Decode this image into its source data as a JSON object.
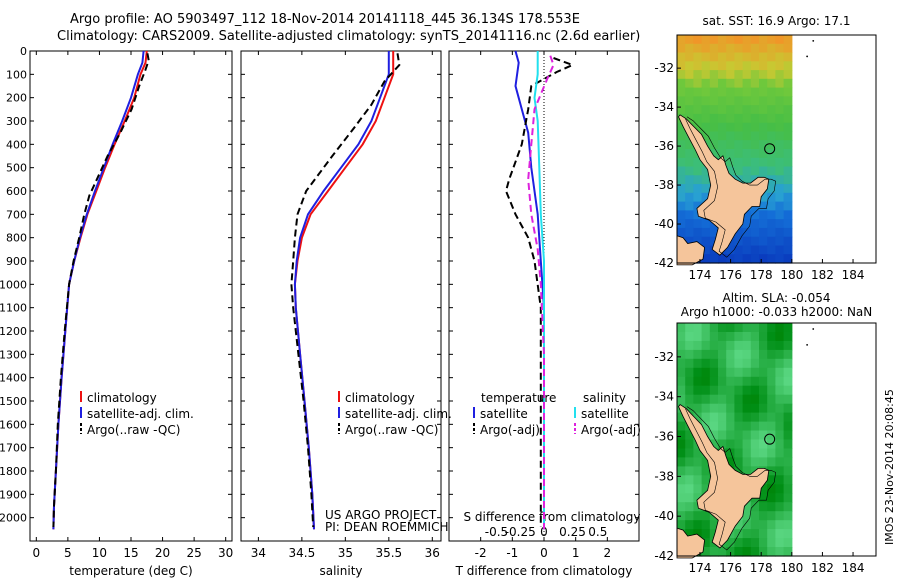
{
  "header": {
    "line1": "Argo profile: AO 5903497_112 18-Nov-2014 20141118_445 36.134S 178.553E",
    "line2": "Climatology: CARS2009. Satellite-adjusted climatology: synTS_20141116.nc (2.6d earlier)"
  },
  "stamp": "IMOS 23-Nov-2014 20:08:45",
  "colors": {
    "climatology": "#ee1111",
    "satellite": "#1f1fe0",
    "argo": "#000000",
    "sal_satellite": "#22e0ee",
    "sal_argo": "#dd22dd",
    "land": "#f5c59b",
    "ocean_cold": "#0a3fbf",
    "ocean_warm": "#f0c020",
    "sla_field": "#36b84a"
  },
  "legends": {
    "temperature": [
      "climatology",
      "satellite-adj. clim.",
      "Argo(..raw -QC)"
    ],
    "salinity": [
      "climatology",
      "satellite-adj. clim.",
      "Argo(..raw -QC)"
    ],
    "difference_headers": [
      "temperature",
      "salinity"
    ],
    "difference_rows": [
      "satellite",
      "Argo(-adj)",
      "satellite",
      "Argo(-adj)"
    ]
  },
  "credits": [
    "US ARGO PROJECT",
    "PI: DEAN ROEMMICH"
  ],
  "map_titles": {
    "sst": "sat. SST: 16.9 Argo: 17.1",
    "sla_line1": "Altim. SLA: -0.054",
    "sla_line2": "Argo h1000: -0.033 h2000: NaN"
  },
  "chart_data": [
    {
      "type": "line",
      "name": "temperature profile",
      "xlabel": "temperature (deg C)",
      "ylabel": "",
      "xlim": [
        -1,
        31
      ],
      "ylim": [
        2100,
        0
      ],
      "xticks": [
        0,
        5,
        10,
        15,
        20,
        25,
        30
      ],
      "yticks": [
        0,
        100,
        200,
        300,
        400,
        500,
        600,
        700,
        800,
        900,
        1000,
        1100,
        1200,
        1300,
        1400,
        1500,
        1600,
        1700,
        1800,
        1900,
        2000
      ],
      "series": [
        {
          "name": "climatology",
          "color_key": "climatology",
          "points": [
            [
              17.5,
              0
            ],
            [
              17.3,
              50
            ],
            [
              16.5,
              100
            ],
            [
              15.5,
              200
            ],
            [
              14.0,
              300
            ],
            [
              12.4,
              400
            ],
            [
              10.9,
              500
            ],
            [
              9.5,
              600
            ],
            [
              8.1,
              700
            ],
            [
              7.0,
              800
            ],
            [
              6.0,
              900
            ],
            [
              5.2,
              1000
            ],
            [
              4.6,
              1200
            ],
            [
              4.0,
              1400
            ],
            [
              3.5,
              1600
            ],
            [
              3.1,
              1800
            ],
            [
              2.8,
              1950
            ],
            [
              2.7,
              2050
            ]
          ]
        },
        {
          "name": "satellite-adj. clim.",
          "color_key": "satellite",
          "points": [
            [
              17.0,
              0
            ],
            [
              16.8,
              50
            ],
            [
              16.1,
              100
            ],
            [
              15.0,
              200
            ],
            [
              13.6,
              300
            ],
            [
              12.1,
              400
            ],
            [
              10.7,
              500
            ],
            [
              9.3,
              600
            ],
            [
              8.0,
              700
            ],
            [
              6.9,
              800
            ],
            [
              6.0,
              900
            ],
            [
              5.2,
              1000
            ],
            [
              4.6,
              1200
            ],
            [
              4.0,
              1400
            ],
            [
              3.5,
              1600
            ],
            [
              3.1,
              1800
            ],
            [
              2.8,
              1950
            ],
            [
              2.7,
              2050
            ]
          ]
        },
        {
          "name": "Argo(..raw -QC)",
          "color_key": "argo",
          "dash": true,
          "points": [
            [
              17.6,
              10
            ],
            [
              17.8,
              40
            ],
            [
              17.3,
              80
            ],
            [
              16.3,
              150
            ],
            [
              15.1,
              250
            ],
            [
              13.3,
              350
            ],
            [
              11.3,
              450
            ],
            [
              9.6,
              550
            ],
            [
              8.4,
              620
            ],
            [
              7.6,
              700
            ],
            [
              6.8,
              800
            ],
            [
              5.9,
              900
            ],
            [
              5.2,
              1000
            ],
            [
              4.5,
              1200
            ],
            [
              3.9,
              1400
            ],
            [
              3.4,
              1600
            ],
            [
              3.1,
              1800
            ],
            [
              2.8,
              1950
            ],
            [
              2.7,
              2040
            ]
          ]
        }
      ]
    },
    {
      "type": "line",
      "name": "salinity profile",
      "xlabel": "salinity",
      "ylabel": "",
      "xlim": [
        33.8,
        36.1
      ],
      "ylim": [
        2100,
        0
      ],
      "xticks": [
        34,
        34.5,
        35,
        35.5,
        36
      ],
      "series": [
        {
          "name": "climatology",
          "color_key": "climatology",
          "points": [
            [
              35.55,
              0
            ],
            [
              35.55,
              100
            ],
            [
              35.45,
              200
            ],
            [
              35.35,
              300
            ],
            [
              35.2,
              400
            ],
            [
              35.0,
              500
            ],
            [
              34.8,
              600
            ],
            [
              34.6,
              700
            ],
            [
              34.5,
              800
            ],
            [
              34.45,
              900
            ],
            [
              34.42,
              1000
            ],
            [
              34.43,
              1100
            ],
            [
              34.48,
              1300
            ],
            [
              34.53,
              1500
            ],
            [
              34.58,
              1700
            ],
            [
              34.62,
              1900
            ],
            [
              34.64,
              2050
            ]
          ]
        },
        {
          "name": "satellite-adj. clim.",
          "color_key": "satellite",
          "points": [
            [
              35.5,
              0
            ],
            [
              35.5,
              100
            ],
            [
              35.4,
              200
            ],
            [
              35.3,
              300
            ],
            [
              35.15,
              400
            ],
            [
              34.95,
              500
            ],
            [
              34.75,
              600
            ],
            [
              34.57,
              700
            ],
            [
              34.48,
              800
            ],
            [
              34.44,
              900
            ],
            [
              34.42,
              1000
            ],
            [
              34.43,
              1100
            ],
            [
              34.48,
              1300
            ],
            [
              34.53,
              1500
            ],
            [
              34.58,
              1700
            ],
            [
              34.62,
              1900
            ],
            [
              34.64,
              2050
            ]
          ]
        },
        {
          "name": "Argo(..raw -QC)",
          "color_key": "argo",
          "dash": true,
          "points": [
            [
              35.6,
              10
            ],
            [
              35.62,
              60
            ],
            [
              35.45,
              130
            ],
            [
              35.3,
              230
            ],
            [
              35.1,
              330
            ],
            [
              34.85,
              450
            ],
            [
              34.55,
              600
            ],
            [
              34.45,
              700
            ],
            [
              34.42,
              800
            ],
            [
              34.4,
              900
            ],
            [
              34.38,
              1000
            ],
            [
              34.4,
              1100
            ],
            [
              34.46,
              1300
            ],
            [
              34.52,
              1500
            ],
            [
              34.57,
              1700
            ],
            [
              34.61,
              1900
            ],
            [
              34.63,
              2040
            ]
          ]
        }
      ]
    },
    {
      "type": "line",
      "name": "difference from climatology",
      "xlabel": "T difference from climatology",
      "xlabel_top": "S difference from climatology",
      "xlim": [
        -3,
        3
      ],
      "ylim": [
        2100,
        0
      ],
      "xticks": [
        -2,
        -1,
        0,
        1,
        2
      ],
      "xticks_top_labels": [
        "-0.5",
        "-0.25",
        "0",
        "0.25",
        "0.5"
      ],
      "series": [
        {
          "name": "satellite",
          "group": "temperature",
          "color_key": "satellite",
          "points": [
            [
              -0.9,
              0
            ],
            [
              -0.8,
              50
            ],
            [
              -0.9,
              150
            ],
            [
              -0.7,
              250
            ],
            [
              -0.5,
              350
            ],
            [
              -0.4,
              500
            ],
            [
              -0.2,
              700
            ],
            [
              -0.1,
              900
            ],
            [
              0,
              1100
            ],
            [
              0,
              1500
            ],
            [
              0,
              2050
            ]
          ]
        },
        {
          "name": "Argo(-adj)",
          "group": "temperature",
          "color_key": "argo",
          "dash": true,
          "points": [
            [
              0.3,
              30
            ],
            [
              0.9,
              60
            ],
            [
              0.4,
              90
            ],
            [
              -0.4,
              150
            ],
            [
              -0.5,
              250
            ],
            [
              -0.7,
              400
            ],
            [
              -1.1,
              550
            ],
            [
              -1.2,
              600
            ],
            [
              -0.9,
              700
            ],
            [
              -0.5,
              800
            ],
            [
              -0.3,
              900
            ],
            [
              -0.1,
              1100
            ],
            [
              -0.1,
              1400
            ],
            [
              -0.1,
              1700
            ],
            [
              -0.1,
              2040
            ]
          ]
        },
        {
          "name": "satellite",
          "group": "salinity",
          "color_key": "sal_satellite",
          "points": [
            [
              -0.2,
              0
            ],
            [
              -0.2,
              100
            ],
            [
              -0.3,
              200
            ],
            [
              -0.2,
              300
            ],
            [
              -0.15,
              500
            ],
            [
              -0.1,
              700
            ],
            [
              0,
              900
            ],
            [
              0,
              1500
            ],
            [
              0,
              2050
            ]
          ]
        },
        {
          "name": "Argo(-adj)",
          "group": "salinity",
          "color_key": "sal_argo",
          "dash": true,
          "points": [
            [
              0.2,
              20
            ],
            [
              0.3,
              60
            ],
            [
              0.1,
              120
            ],
            [
              -0.3,
              250
            ],
            [
              -0.4,
              400
            ],
            [
              -0.5,
              550
            ],
            [
              -0.4,
              700
            ],
            [
              -0.2,
              850
            ],
            [
              -0.1,
              1000
            ],
            [
              0,
              1300
            ],
            [
              0,
              2050
            ]
          ]
        }
      ]
    },
    {
      "type": "heatmap",
      "name": "sat. SST map",
      "xlim": [
        172.5,
        185.5
      ],
      "ylim": [
        -42,
        -30.3
      ],
      "xticks": [
        174,
        176,
        178,
        180,
        182,
        184
      ],
      "yticks": [
        -32,
        -34,
        -36,
        -38,
        -40,
        -42
      ],
      "data_extent_east": 180,
      "float_position": [
        178.553,
        -36.134
      ]
    },
    {
      "type": "heatmap",
      "name": "altim. SLA map",
      "xlim": [
        172.5,
        185.5
      ],
      "ylim": [
        -42,
        -30.3
      ],
      "xticks": [
        174,
        176,
        178,
        180,
        182,
        184
      ],
      "yticks": [
        -32,
        -34,
        -36,
        -38,
        -40,
        -42
      ],
      "data_extent_east": 180,
      "float_position": [
        178.553,
        -36.134
      ]
    }
  ]
}
